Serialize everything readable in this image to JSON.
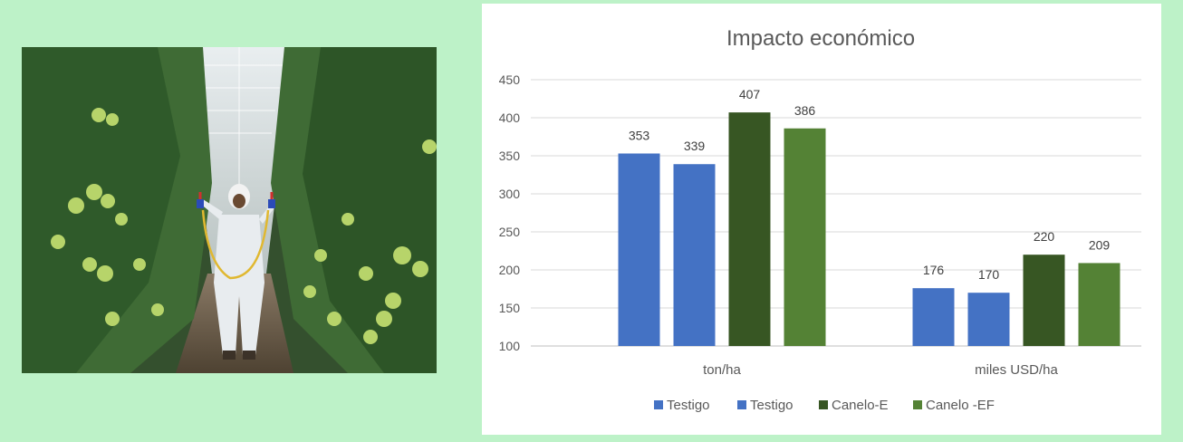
{
  "photo": {
    "subject": "person-spraying-greenhouse-tomatoes"
  },
  "chart_data": {
    "type": "bar",
    "title": "Impacto económico",
    "categories": [
      "ton/ha",
      "miles USD/ha"
    ],
    "series": [
      {
        "name": "Testigo",
        "values": [
          353,
          176
        ],
        "color": "#4472c4"
      },
      {
        "name": "Testigo",
        "values": [
          339,
          170
        ],
        "color": "#4472c4"
      },
      {
        "name": "Canelo-E",
        "values": [
          407,
          220
        ],
        "color": "#375623"
      },
      {
        "name": "Canelo -EF",
        "values": [
          386,
          209
        ],
        "color": "#548235"
      }
    ],
    "ylim": [
      100,
      450
    ],
    "yticks": [
      100,
      150,
      200,
      250,
      300,
      350,
      400,
      450
    ],
    "grid": true,
    "legend": "bottom",
    "xlabel": "",
    "ylabel": ""
  }
}
